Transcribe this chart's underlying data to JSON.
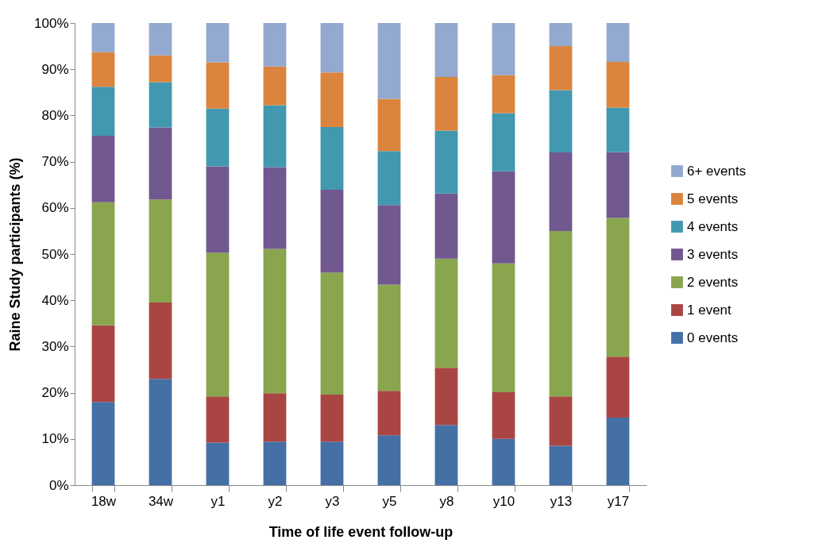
{
  "chart_data": {
    "type": "bar",
    "stacked": true,
    "xlabel": "Time of life event follow-up",
    "ylabel": "Raine Study participants (%)",
    "categories": [
      "18w",
      "34w",
      "y1",
      "y2",
      "y3",
      "y5",
      "y8",
      "y10",
      "y13",
      "y17"
    ],
    "series": [
      {
        "name": "0 events",
        "color": "#4470a6",
        "values": [
          18,
          23,
          9.2,
          9.4,
          9.4,
          10.8,
          13,
          10,
          8.5,
          14.6
        ]
      },
      {
        "name": "1 event",
        "color": "#a94643",
        "values": [
          16.6,
          16.5,
          10,
          10.5,
          10.2,
          9.6,
          12.4,
          10.1,
          10.7,
          13.2
        ]
      },
      {
        "name": "2 events",
        "color": "#89a54e",
        "values": [
          26.6,
          22.3,
          31.1,
          31.2,
          26.4,
          23,
          23.6,
          27.9,
          35.8,
          30
        ]
      },
      {
        "name": "3 events",
        "color": "#71588f",
        "values": [
          14.4,
          15.6,
          18.7,
          17.7,
          17.9,
          17.2,
          14.1,
          19.9,
          17,
          14.3
        ]
      },
      {
        "name": "4 events",
        "color": "#4198af",
        "values": [
          10.6,
          9.8,
          12.5,
          13.4,
          13.6,
          11.7,
          13.6,
          12.6,
          13.5,
          9.6
        ]
      },
      {
        "name": "5 events",
        "color": "#db843d",
        "values": [
          7.5,
          5.8,
          10,
          8.4,
          11.8,
          11.3,
          11.6,
          8.2,
          9.5,
          9.9
        ]
      },
      {
        "name": "6+ events",
        "color": "#93a9cf",
        "values": [
          6.3,
          7,
          8.5,
          9.4,
          10.7,
          16.4,
          11.7,
          11.3,
          5,
          8.4
        ]
      }
    ],
    "ylim": [
      0,
      100
    ],
    "yticks": [
      {
        "value": 0,
        "label": "0%"
      },
      {
        "value": 10,
        "label": "10%"
      },
      {
        "value": 20,
        "label": "20%"
      },
      {
        "value": 30,
        "label": "30%"
      },
      {
        "value": 40,
        "label": "40%"
      },
      {
        "value": 50,
        "label": "50%"
      },
      {
        "value": 60,
        "label": "60%"
      },
      {
        "value": 70,
        "label": "70%"
      },
      {
        "value": 80,
        "label": "80%"
      },
      {
        "value": 90,
        "label": "90%"
      },
      {
        "value": 100,
        "label": "100%"
      }
    ],
    "grid": false,
    "legend": "right"
  }
}
